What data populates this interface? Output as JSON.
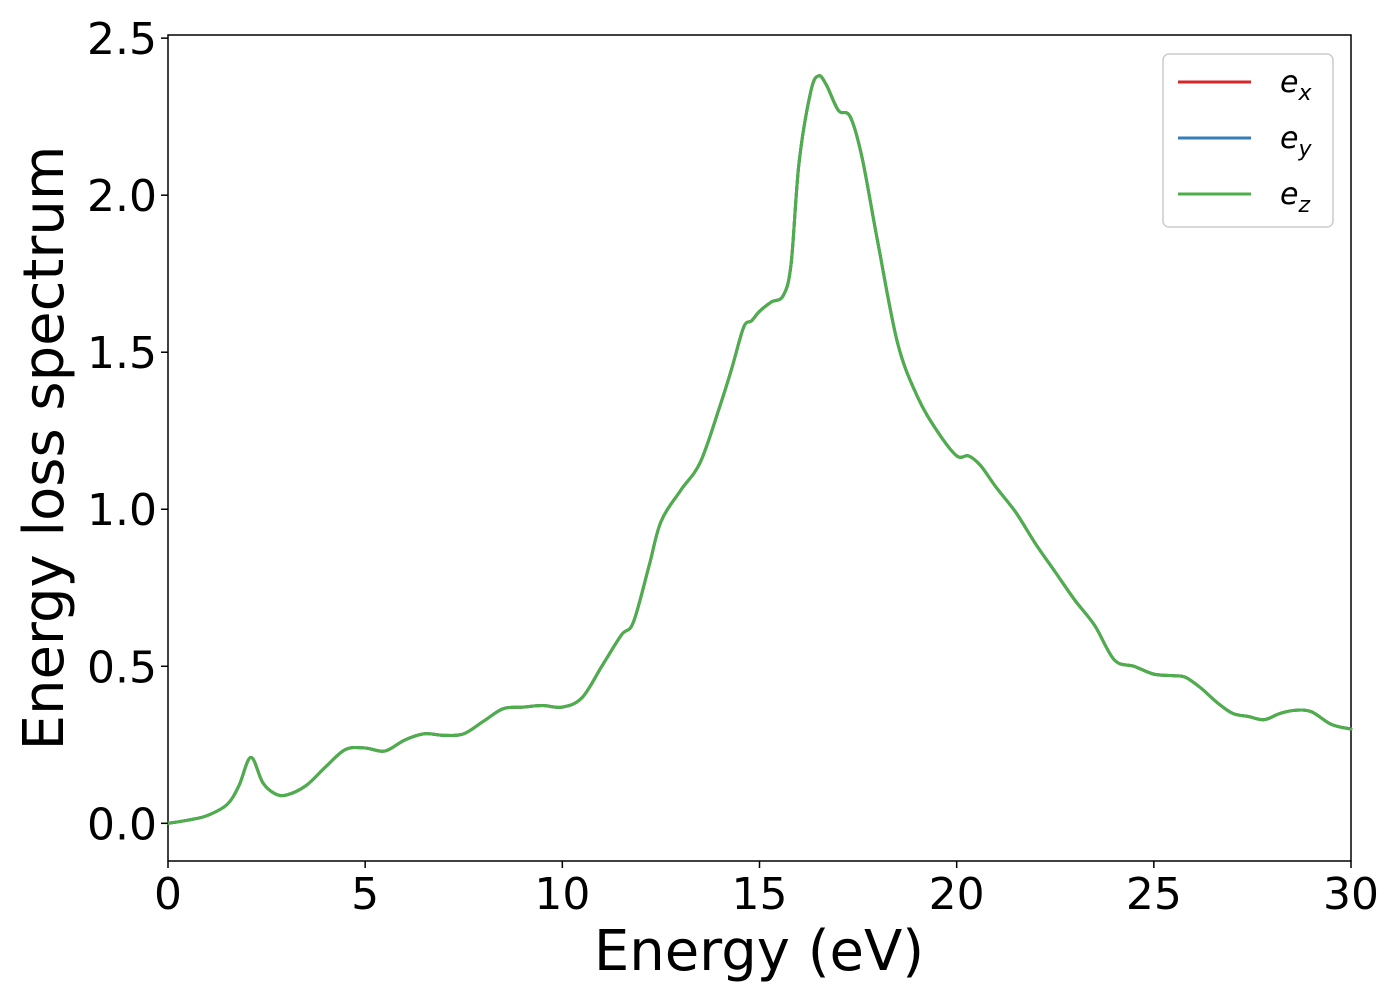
{
  "chart_data": {
    "type": "line",
    "title": "",
    "xlabel": "Energy (eV)",
    "ylabel": "Energy loss spectrum",
    "xlim": [
      0,
      30
    ],
    "ylim": [
      -0.12,
      2.51
    ],
    "xticks": [
      0,
      5,
      10,
      15,
      20,
      25,
      30
    ],
    "yticks": [
      0.0,
      0.5,
      1.0,
      1.5,
      2.0,
      2.5
    ],
    "xtick_labels": [
      "0",
      "5",
      "10",
      "15",
      "20",
      "25",
      "30"
    ],
    "ytick_labels": [
      "0.0",
      "0.5",
      "1.0",
      "1.5",
      "2.0",
      "2.5"
    ],
    "grid": false,
    "legend_position": "top-right",
    "x": [
      0,
      0.5,
      1.0,
      1.5,
      1.8,
      2.1,
      2.4,
      2.7,
      3.0,
      3.5,
      4.0,
      4.5,
      5.0,
      5.5,
      6.0,
      6.5,
      7.0,
      7.5,
      8.0,
      8.5,
      9.0,
      9.5,
      10.0,
      10.5,
      11.0,
      11.5,
      11.8,
      12.2,
      12.5,
      13.0,
      13.5,
      14.0,
      14.3,
      14.6,
      14.8,
      15.0,
      15.3,
      15.6,
      15.8,
      16.0,
      16.3,
      16.5,
      16.7,
      17.0,
      17.3,
      17.6,
      18.0,
      18.5,
      19.0,
      19.5,
      20.0,
      20.3,
      20.6,
      21.0,
      21.5,
      22.0,
      22.5,
      23.0,
      23.5,
      24.0,
      24.5,
      25.0,
      25.5,
      25.8,
      26.2,
      26.6,
      27.0,
      27.4,
      27.8,
      28.2,
      28.6,
      29.0,
      29.5,
      30.0
    ],
    "series": [
      {
        "name": "e_x",
        "legend_base": "e",
        "legend_sub": "x",
        "color": "#d62728",
        "values": [
          0.0,
          0.01,
          0.025,
          0.06,
          0.12,
          0.21,
          0.13,
          0.095,
          0.09,
          0.12,
          0.18,
          0.235,
          0.24,
          0.23,
          0.265,
          0.285,
          0.28,
          0.285,
          0.325,
          0.365,
          0.37,
          0.375,
          0.37,
          0.4,
          0.5,
          0.6,
          0.64,
          0.82,
          0.96,
          1.06,
          1.15,
          1.33,
          1.45,
          1.58,
          1.6,
          1.63,
          1.66,
          1.68,
          1.78,
          2.1,
          2.33,
          2.38,
          2.35,
          2.27,
          2.25,
          2.12,
          1.85,
          1.53,
          1.36,
          1.25,
          1.17,
          1.17,
          1.14,
          1.07,
          0.99,
          0.89,
          0.8,
          0.71,
          0.63,
          0.52,
          0.5,
          0.475,
          0.47,
          0.465,
          0.43,
          0.385,
          0.35,
          0.34,
          0.33,
          0.35,
          0.36,
          0.355,
          0.315,
          0.3
        ]
      },
      {
        "name": "e_y",
        "legend_base": "e",
        "legend_sub": "y",
        "color": "#377eb8",
        "values": [
          0.0,
          0.01,
          0.025,
          0.06,
          0.12,
          0.21,
          0.13,
          0.095,
          0.09,
          0.12,
          0.18,
          0.235,
          0.24,
          0.23,
          0.265,
          0.285,
          0.28,
          0.285,
          0.325,
          0.365,
          0.37,
          0.375,
          0.37,
          0.4,
          0.5,
          0.6,
          0.64,
          0.82,
          0.96,
          1.06,
          1.15,
          1.33,
          1.45,
          1.58,
          1.6,
          1.63,
          1.66,
          1.68,
          1.78,
          2.1,
          2.33,
          2.38,
          2.35,
          2.27,
          2.25,
          2.12,
          1.85,
          1.53,
          1.36,
          1.25,
          1.17,
          1.17,
          1.14,
          1.07,
          0.99,
          0.89,
          0.8,
          0.71,
          0.63,
          0.52,
          0.5,
          0.475,
          0.47,
          0.465,
          0.43,
          0.385,
          0.35,
          0.34,
          0.33,
          0.35,
          0.36,
          0.355,
          0.315,
          0.3
        ]
      },
      {
        "name": "e_z",
        "legend_base": "e",
        "legend_sub": "z",
        "color": "#4daf4a",
        "values": [
          0.0,
          0.01,
          0.025,
          0.06,
          0.12,
          0.21,
          0.13,
          0.095,
          0.09,
          0.12,
          0.18,
          0.235,
          0.24,
          0.23,
          0.265,
          0.285,
          0.28,
          0.285,
          0.325,
          0.365,
          0.37,
          0.375,
          0.37,
          0.4,
          0.5,
          0.6,
          0.64,
          0.82,
          0.96,
          1.06,
          1.15,
          1.33,
          1.45,
          1.58,
          1.6,
          1.63,
          1.66,
          1.68,
          1.78,
          2.1,
          2.33,
          2.38,
          2.35,
          2.27,
          2.25,
          2.12,
          1.85,
          1.53,
          1.36,
          1.25,
          1.17,
          1.17,
          1.14,
          1.07,
          0.99,
          0.89,
          0.8,
          0.71,
          0.63,
          0.52,
          0.5,
          0.475,
          0.47,
          0.465,
          0.43,
          0.385,
          0.35,
          0.34,
          0.33,
          0.35,
          0.36,
          0.355,
          0.315,
          0.3
        ]
      }
    ]
  }
}
